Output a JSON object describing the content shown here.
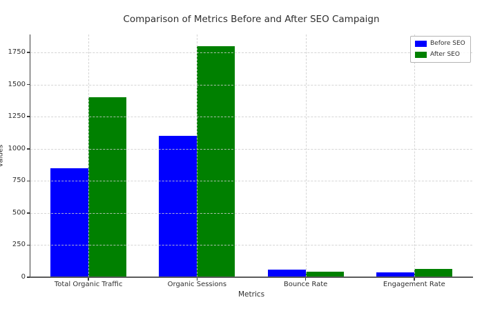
{
  "figure": {
    "background": "#ffffff"
  },
  "chart_data": {
    "type": "bar",
    "title": "Comparison of Metrics Before and After SEO Campaign",
    "xlabel": "Metrics",
    "ylabel": "values",
    "categories": [
      "Total Organic Traffic",
      "Organic Sessions",
      "Bounce Rate",
      "Engagement Rate"
    ],
    "series": [
      {
        "name": "Before SEO",
        "color": "#0000ff",
        "values": [
          850,
          1100,
          60,
          40
        ]
      },
      {
        "name": "After SEO",
        "color": "#008000",
        "values": [
          1400,
          1800,
          45,
          65
        ]
      }
    ],
    "ylim": [
      0,
      1890
    ],
    "yticks": [
      0,
      250,
      500,
      750,
      1000,
      1250,
      1500,
      1750
    ],
    "bar_width": 0.35,
    "grid": "dashed-over-bars",
    "legend_position": "upper-right",
    "spines": [
      "left",
      "bottom"
    ]
  }
}
